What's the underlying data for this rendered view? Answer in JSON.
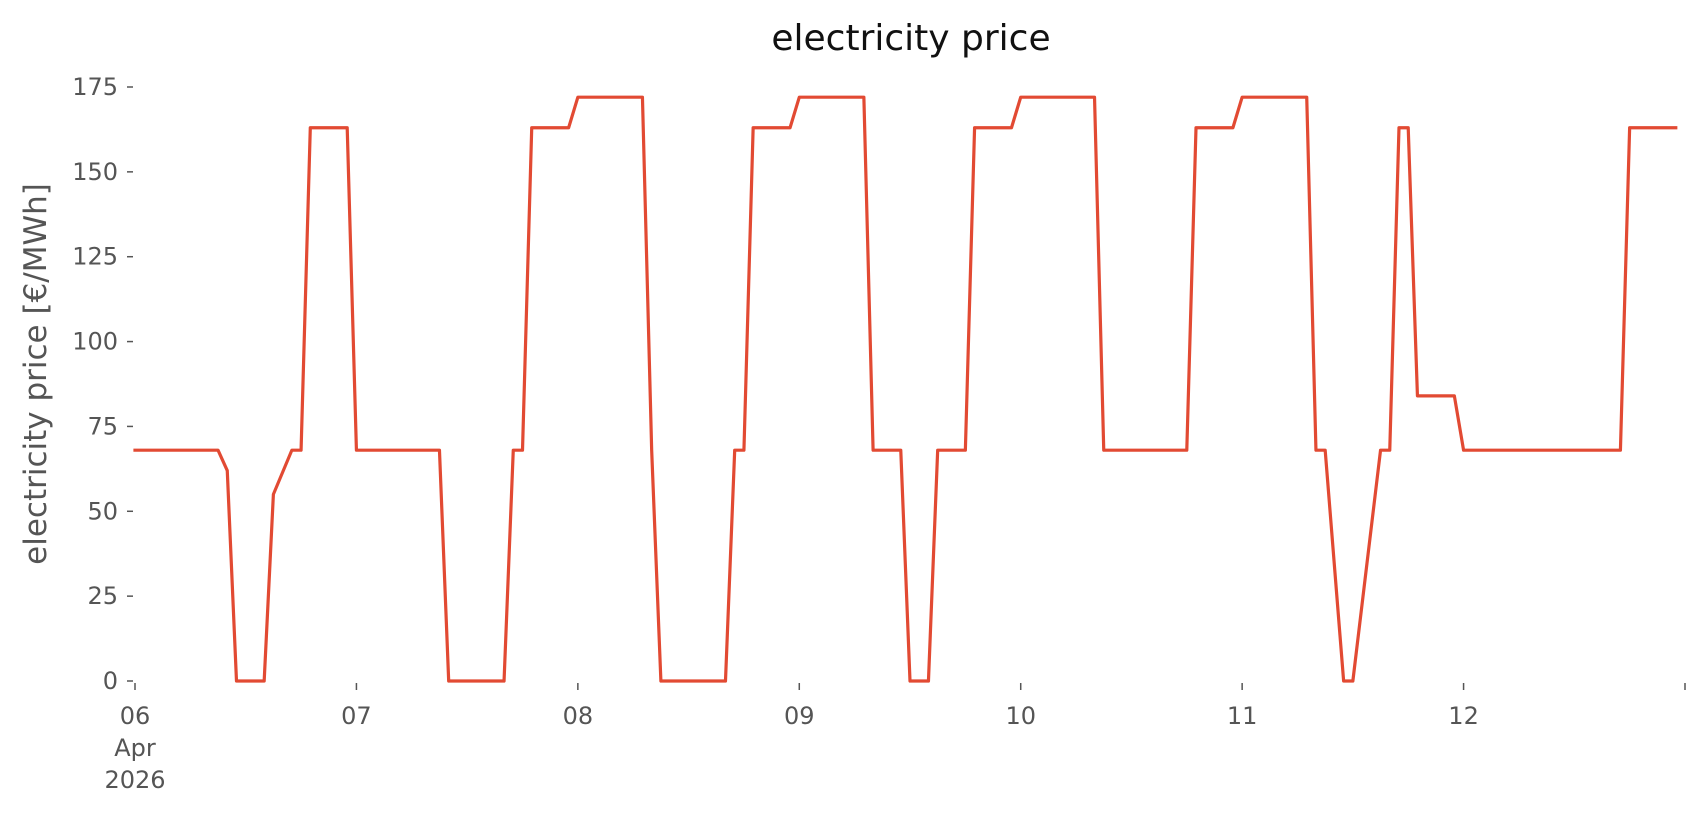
{
  "chart_data": {
    "type": "line",
    "title": "electricity price",
    "xlabel": "",
    "ylabel": "electricity price [€/MWh]",
    "x_axis_type": "datetime",
    "xlim": [
      "2026-04-06 00:00",
      "2026-04-13 00:00"
    ],
    "ylim": [
      0,
      175
    ],
    "grid": false,
    "legend": "none",
    "colors": {
      "line": "#E24A33",
      "tick": "#555555",
      "title": "#111111",
      "background": "#ffffff"
    },
    "x_ticks": [
      {
        "at": "2026-04-06 00:00",
        "lines": [
          "06",
          "Apr",
          "2026"
        ]
      },
      {
        "at": "2026-04-07 00:00",
        "lines": [
          "07"
        ]
      },
      {
        "at": "2026-04-08 00:00",
        "lines": [
          "08"
        ]
      },
      {
        "at": "2026-04-09 00:00",
        "lines": [
          "09"
        ]
      },
      {
        "at": "2026-04-10 00:00",
        "lines": [
          "10"
        ]
      },
      {
        "at": "2026-04-11 00:00",
        "lines": [
          "11"
        ]
      },
      {
        "at": "2026-04-12 00:00",
        "lines": [
          "12"
        ]
      },
      {
        "at": "2026-04-13 00:00",
        "lines": []
      }
    ],
    "y_ticks": [
      {
        "value": 0,
        "label": "0"
      },
      {
        "value": 25,
        "label": "25"
      },
      {
        "value": 50,
        "label": "50"
      },
      {
        "value": 75,
        "label": "75"
      },
      {
        "value": 100,
        "label": "100"
      },
      {
        "value": 125,
        "label": "125"
      },
      {
        "value": 150,
        "label": "150"
      },
      {
        "value": 175,
        "label": "175"
      }
    ],
    "series": [
      {
        "x": [
          "2026-04-06 00:00",
          "2026-04-06 09:00",
          "2026-04-06 10:00",
          "2026-04-06 11:00",
          "2026-04-06 14:00",
          "2026-04-06 15:00",
          "2026-04-06 17:00",
          "2026-04-06 18:00",
          "2026-04-06 19:00",
          "2026-04-06 23:00",
          "2026-04-07 00:00",
          "2026-04-07 09:00",
          "2026-04-07 10:00",
          "2026-04-07 16:00",
          "2026-04-07 17:00",
          "2026-04-07 18:00",
          "2026-04-07 19:00",
          "2026-04-07 23:00",
          "2026-04-08 00:00",
          "2026-04-08 07:00",
          "2026-04-08 08:00",
          "2026-04-08 09:00",
          "2026-04-08 16:00",
          "2026-04-08 17:00",
          "2026-04-08 18:00",
          "2026-04-08 19:00",
          "2026-04-08 23:00",
          "2026-04-09 00:00",
          "2026-04-09 07:00",
          "2026-04-09 08:00",
          "2026-04-09 11:00",
          "2026-04-09 12:00",
          "2026-04-09 14:00",
          "2026-04-09 15:00",
          "2026-04-09 18:00",
          "2026-04-09 19:00",
          "2026-04-09 23:00",
          "2026-04-10 00:00",
          "2026-04-10 08:00",
          "2026-04-10 09:00",
          "2026-04-10 18:00",
          "2026-04-10 19:00",
          "2026-04-10 23:00",
          "2026-04-11 00:00",
          "2026-04-11 07:00",
          "2026-04-11 08:00",
          "2026-04-11 09:00",
          "2026-04-11 11:00",
          "2026-04-11 12:00",
          "2026-04-11 15:00",
          "2026-04-11 16:00",
          "2026-04-11 17:00",
          "2026-04-11 18:00",
          "2026-04-11 19:00",
          "2026-04-11 23:00",
          "2026-04-12 00:00",
          "2026-04-12 07:00",
          "2026-04-12 08:00",
          "2026-04-12 17:00",
          "2026-04-12 18:00",
          "2026-04-12 23:00"
        ],
        "y": [
          68,
          68,
          62,
          0,
          0,
          55,
          68,
          68,
          163,
          163,
          68,
          68,
          0,
          0,
          68,
          68,
          163,
          163,
          172,
          172,
          68,
          0,
          0,
          68,
          68,
          163,
          163,
          172,
          172,
          68,
          68,
          0,
          0,
          68,
          68,
          163,
          163,
          172,
          172,
          68,
          68,
          163,
          163,
          172,
          172,
          68,
          68,
          0,
          0,
          68,
          68,
          163,
          163,
          84,
          84,
          68,
          68,
          68,
          68,
          163,
          163
        ]
      }
    ]
  }
}
